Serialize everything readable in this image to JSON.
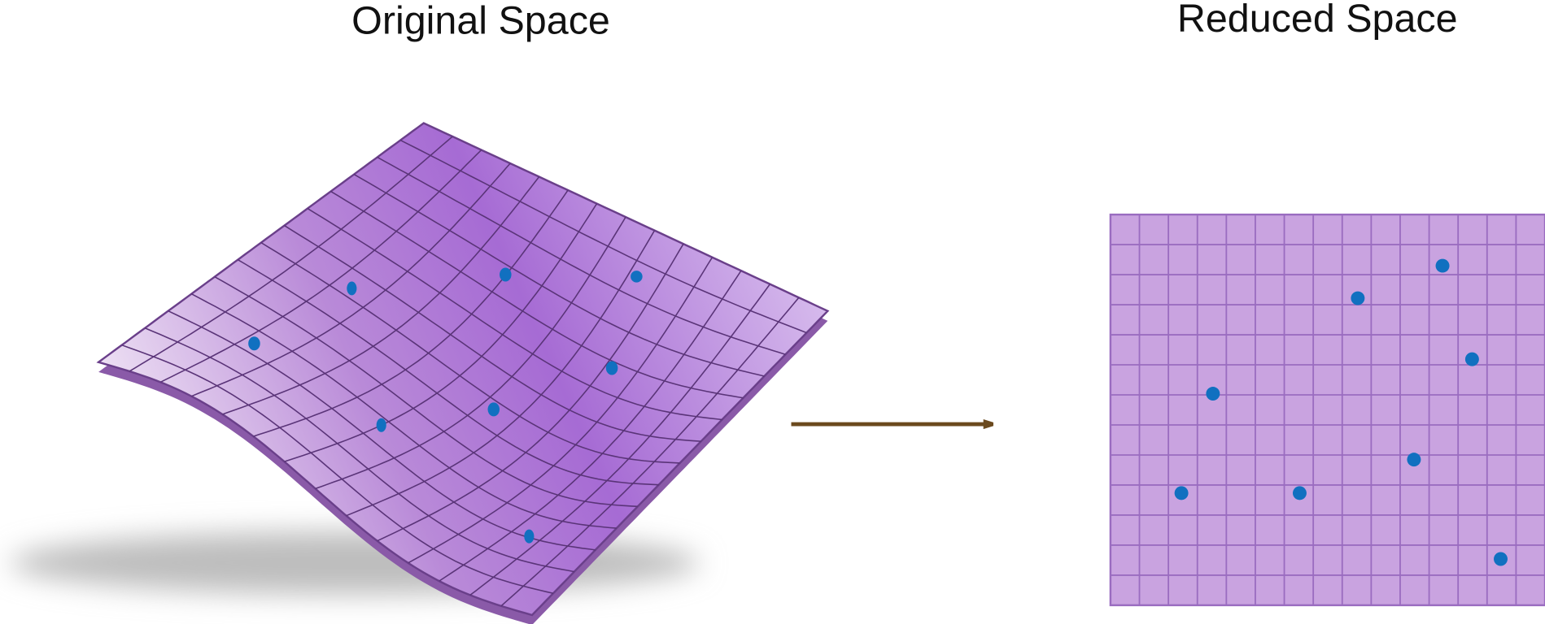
{
  "left_title": "Original Space",
  "right_title": "Reduced Space"
}
